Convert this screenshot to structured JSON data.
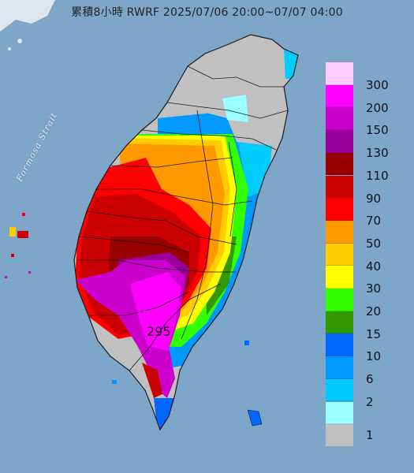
{
  "title": "累積8小時 RWRF 2025/07/06 20:00~07/07 04:00",
  "strait_label": "Formosa Strait",
  "max_label": "295",
  "legend": {
    "classes": [
      {
        "label": "300",
        "color": "#ffccff"
      },
      {
        "label": "200",
        "color": "#ff00ff"
      },
      {
        "label": "150",
        "color": "#cc00cc"
      },
      {
        "label": "130",
        "color": "#990099"
      },
      {
        "label": "110",
        "color": "#990000"
      },
      {
        "label": "90",
        "color": "#cc0000"
      },
      {
        "label": "70",
        "color": "#ff0000"
      },
      {
        "label": "50",
        "color": "#ff9900"
      },
      {
        "label": "40",
        "color": "#ffcc00"
      },
      {
        "label": "30",
        "color": "#ffff00"
      },
      {
        "label": "20",
        "color": "#33ff00"
      },
      {
        "label": "15",
        "color": "#339900"
      },
      {
        "label": "10",
        "color": "#0066ff"
      },
      {
        "label": "6",
        "color": "#0099ff"
      },
      {
        "label": "2",
        "color": "#00ccff"
      },
      {
        "label": "1",
        "color": "#99ffff"
      },
      {
        "label": "",
        "color": "#c0c0c0"
      }
    ]
  },
  "colors": {
    "sea": "#7ea6c9",
    "land_dry": "#c0c0c0",
    "boundary": "#1a1a1a"
  }
}
